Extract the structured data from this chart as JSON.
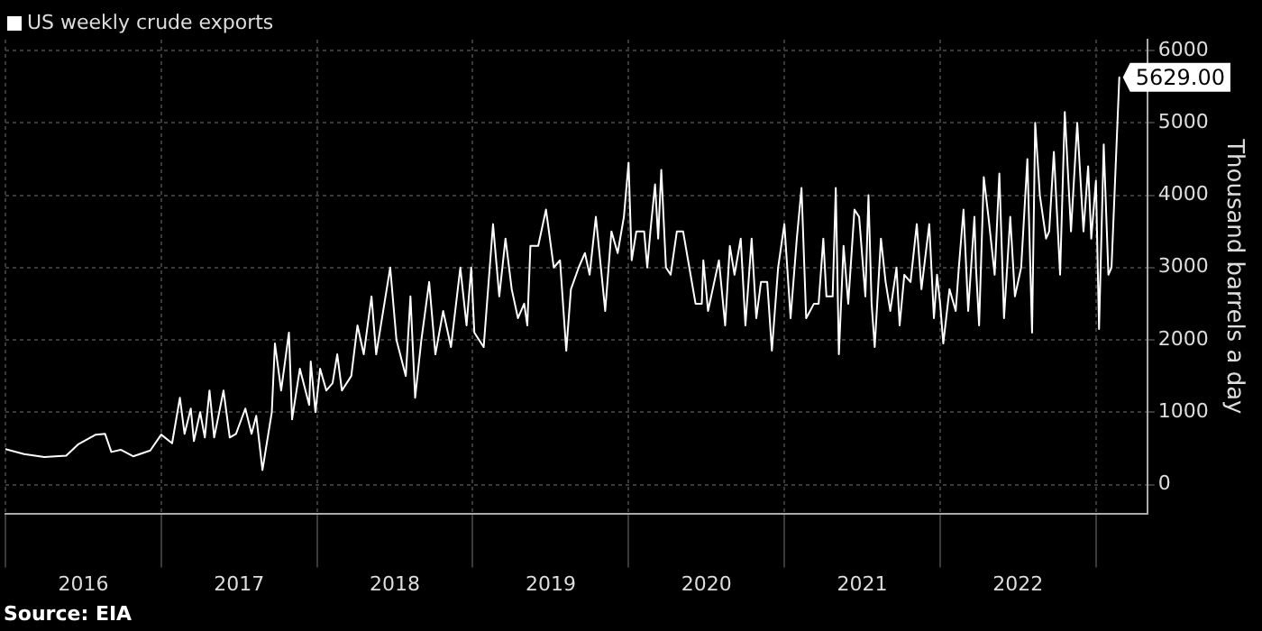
{
  "chart_data": {
    "type": "line",
    "ylabel": "Thousand barrels a day",
    "legend": "top left",
    "grid": true,
    "marker": "none",
    "line_style": "solid",
    "xlim": [
      2016,
      2023.33
    ],
    "ylim": [
      -400,
      6150
    ],
    "xticks": [
      {
        "value": 2016,
        "label": null
      },
      {
        "value": 2016.5,
        "label": "2016"
      },
      {
        "value": 2017,
        "label": null
      },
      {
        "value": 2017.5,
        "label": "2017"
      },
      {
        "value": 2018,
        "label": null
      },
      {
        "value": 2018.5,
        "label": "2018"
      },
      {
        "value": 2019,
        "label": null
      },
      {
        "value": 2019.5,
        "label": "2019"
      },
      {
        "value": 2020,
        "label": null
      },
      {
        "value": 2020.5,
        "label": "2020"
      },
      {
        "value": 2021,
        "label": null
      },
      {
        "value": 2021.5,
        "label": "2021"
      },
      {
        "value": 2022,
        "label": null
      },
      {
        "value": 2022.5,
        "label": "2022"
      },
      {
        "value": 2023,
        "label": null
      }
    ],
    "yticks": [
      0,
      1000,
      2000,
      3000,
      4000,
      5000,
      6000
    ],
    "annotations": [
      "Source: EIA"
    ],
    "series": [
      {
        "name": "US weekly crude exports",
        "color": "#ffffff",
        "x": [
          2016.0,
          2016.12,
          2016.25,
          2016.39,
          2016.47,
          2016.58,
          2016.64,
          2016.68,
          2016.74,
          2016.82,
          2016.93,
          2017.0,
          2017.07,
          2017.12,
          2017.15,
          2017.19,
          2017.21,
          2017.25,
          2017.28,
          2017.31,
          2017.34,
          2017.4,
          2017.44,
          2017.48,
          2017.54,
          2017.58,
          2017.61,
          2017.65,
          2017.71,
          2017.73,
          2017.77,
          2017.82,
          2017.84,
          2017.89,
          2017.95,
          2017.96,
          2017.99,
          2018.02,
          2018.06,
          2018.1,
          2018.13,
          2018.16,
          2018.22,
          2018.26,
          2018.3,
          2018.35,
          2018.38,
          2018.41,
          2018.47,
          2018.51,
          2018.57,
          2018.6,
          2018.63,
          2018.67,
          2018.72,
          2018.76,
          2018.81,
          2018.86,
          2018.92,
          2018.96,
          2018.99,
          2019.01,
          2019.07,
          2019.13,
          2019.17,
          2019.21,
          2019.25,
          2019.29,
          2019.33,
          2019.35,
          2019.37,
          2019.42,
          2019.47,
          2019.52,
          2019.56,
          2019.6,
          2019.63,
          2019.68,
          2019.72,
          2019.75,
          2019.79,
          2019.85,
          2019.89,
          2019.93,
          2019.97,
          2020.0,
          2020.02,
          2020.05,
          2020.1,
          2020.12,
          2020.14,
          2020.17,
          2020.19,
          2020.21,
          2020.24,
          2020.27,
          2020.31,
          2020.35,
          2020.39,
          2020.43,
          2020.47,
          2020.48,
          2020.51,
          2020.54,
          2020.58,
          2020.62,
          2020.65,
          2020.68,
          2020.72,
          2020.75,
          2020.79,
          2020.82,
          2020.85,
          2020.89,
          2020.92,
          2020.96,
          2021.0,
          2021.04,
          2021.08,
          2021.11,
          2021.14,
          2021.19,
          2021.22,
          2021.25,
          2021.27,
          2021.31,
          2021.33,
          2021.35,
          2021.38,
          2021.41,
          2021.45,
          2021.48,
          2021.52,
          2021.54,
          2021.56,
          2021.58,
          2021.62,
          2021.65,
          2021.68,
          2021.72,
          2021.74,
          2021.77,
          2021.81,
          2021.85,
          2021.88,
          2021.93,
          2021.96,
          2021.98,
          2022.0,
          2022.02,
          2022.06,
          2022.1,
          2022.12,
          2022.15,
          2022.18,
          2022.22,
          2022.23,
          2022.25,
          2022.28,
          2022.31,
          2022.35,
          2022.38,
          2022.41,
          2022.45,
          2022.48,
          2022.52,
          2022.56,
          2022.59,
          2022.61,
          2022.64,
          2022.68,
          2022.7,
          2022.73,
          2022.77,
          2022.8,
          2022.84,
          2022.88,
          2022.92,
          2022.95,
          2022.97,
          2023.0,
          2023.02,
          2023.05,
          2023.08,
          2023.1,
          2023.15
        ],
        "values": [
          490,
          420,
          380,
          400,
          560,
          690,
          700,
          450,
          480,
          390,
          470,
          690,
          570,
          1200,
          700,
          1050,
          600,
          1000,
          650,
          1300,
          650,
          1300,
          650,
          700,
          1050,
          700,
          950,
          200,
          1000,
          1950,
          1300,
          2100,
          900,
          1600,
          1100,
          1700,
          1000,
          1600,
          1300,
          1400,
          1800,
          1300,
          1500,
          2200,
          1800,
          2600,
          1800,
          2200,
          3000,
          2000,
          1500,
          2600,
          1200,
          2000,
          2800,
          1800,
          2400,
          1900,
          3000,
          2200,
          3000,
          2100,
          1900,
          3600,
          2600,
          3400,
          2700,
          2300,
          2500,
          2200,
          3300,
          3300,
          3800,
          3000,
          3100,
          1850,
          2700,
          3000,
          3200,
          2900,
          3700,
          2400,
          3500,
          3200,
          3700,
          4450,
          3100,
          3500,
          3500,
          3000,
          3500,
          4150,
          3400,
          4350,
          3000,
          2900,
          3500,
          3500,
          3000,
          2500,
          2500,
          3100,
          2400,
          2700,
          3100,
          2200,
          3300,
          2900,
          3400,
          2200,
          3400,
          2300,
          2800,
          2800,
          1850,
          3000,
          3600,
          2300,
          3400,
          4100,
          2300,
          2500,
          2500,
          3400,
          2600,
          2600,
          4100,
          1800,
          3300,
          2500,
          3800,
          3700,
          2600,
          4000,
          2500,
          1900,
          3400,
          2800,
          2400,
          3000,
          2200,
          2900,
          2800,
          3600,
          2700,
          3600,
          2300,
          2900,
          2500,
          1950,
          2700,
          2400,
          3000,
          3800,
          2400,
          3700,
          3000,
          2200,
          4250,
          3700,
          2900,
          4300,
          2300,
          3700,
          2600,
          3000,
          4500,
          2100,
          5000,
          4000,
          3400,
          3500,
          4600,
          2900,
          5150,
          3500,
          5000,
          3500,
          4400,
          3400,
          4200,
          2150,
          4700,
          2900,
          3000,
          5629
        ],
        "value_labels": [
          null,
          null,
          null,
          null,
          null,
          null,
          null,
          null,
          null,
          null,
          null,
          null,
          null,
          null,
          null,
          null,
          null,
          null,
          null,
          null,
          null,
          null,
          null,
          null,
          null,
          null,
          null,
          null,
          null,
          null,
          null,
          null,
          null,
          null,
          null,
          null,
          null,
          null,
          null,
          null,
          null,
          null,
          null,
          null,
          null,
          null,
          null,
          null,
          null,
          null,
          null,
          null,
          null,
          null,
          null,
          null,
          null,
          null,
          null,
          null,
          null,
          null,
          null,
          null,
          null,
          null,
          null,
          null,
          null,
          null,
          null,
          null,
          null,
          null,
          null,
          null,
          null,
          null,
          null,
          null,
          null,
          null,
          null,
          null,
          null,
          null,
          null,
          null,
          null,
          null,
          null,
          null,
          null,
          null,
          null,
          null,
          null,
          null,
          null,
          null,
          null,
          null,
          null,
          null,
          null,
          null,
          null,
          null,
          null,
          null,
          null,
          null,
          null,
          null,
          null,
          null,
          null,
          null,
          null,
          null,
          null,
          null,
          null,
          null,
          null,
          null,
          null,
          null,
          null,
          null,
          null,
          null,
          null,
          null,
          null,
          null,
          null,
          null,
          null,
          null,
          null,
          null,
          null,
          null,
          null,
          null,
          null,
          null,
          null,
          null,
          null,
          null,
          null,
          null,
          null,
          null,
          null,
          null,
          null,
          null,
          null,
          null,
          null,
          null,
          null,
          null,
          null,
          null,
          null,
          null,
          null,
          null,
          null,
          null,
          null,
          null,
          null,
          null,
          null,
          null,
          null,
          null,
          null,
          null,
          null,
          "5629.00"
        ]
      }
    ]
  }
}
